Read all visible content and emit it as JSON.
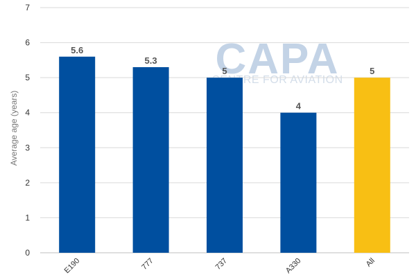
{
  "watermark": {
    "logo": "CAPA",
    "subtitle": "CENTRE FOR AVIATION"
  },
  "chart_data": {
    "type": "bar",
    "title": "",
    "xlabel": "",
    "ylabel": "Average age (years)",
    "ylim": [
      0,
      7
    ],
    "yticks": [
      0,
      1,
      2,
      3,
      4,
      5,
      6,
      7
    ],
    "grid": true,
    "categories": [
      "E190",
      "777",
      "737",
      "A330",
      "All"
    ],
    "values": [
      5.6,
      5.3,
      5,
      4,
      5
    ],
    "data_labels": [
      "5.6",
      "5.3",
      "5",
      "4",
      "5"
    ],
    "colors": [
      "#004f9f",
      "#004f9f",
      "#004f9f",
      "#004f9f",
      "#f8bf14"
    ]
  }
}
